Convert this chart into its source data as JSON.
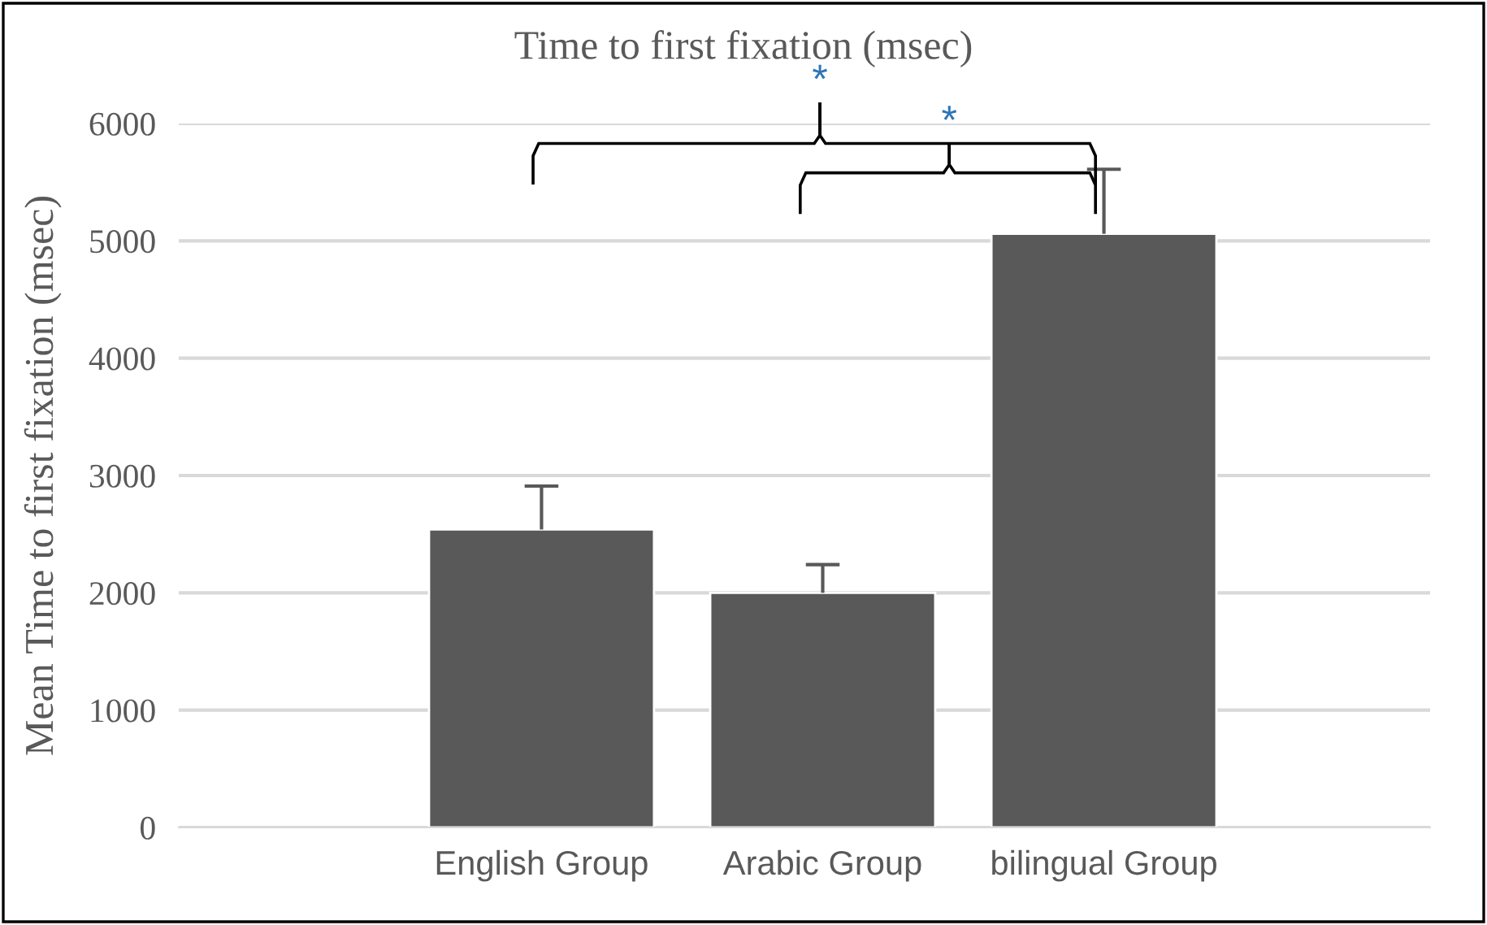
{
  "chart_data": {
    "type": "bar",
    "title": "Time to first fixation (msec)",
    "ylabel": "Mean Time to first fixation (msec)",
    "categories": [
      "English Group",
      "Arabic Group",
      "bilingual Group"
    ],
    "values": [
      2540,
      2000,
      5060
    ],
    "color": "#595959",
    "errors": [
      [
        2540,
        2910
      ],
      [
        2000,
        2240
      ],
      [
        5060,
        5610
      ]
    ],
    "ylim": [
      0,
      6000
    ],
    "yticks": [
      0,
      1000,
      2000,
      3000,
      4000,
      5000,
      6000
    ],
    "grid": "y",
    "annotations": [
      "*",
      "*"
    ]
  }
}
